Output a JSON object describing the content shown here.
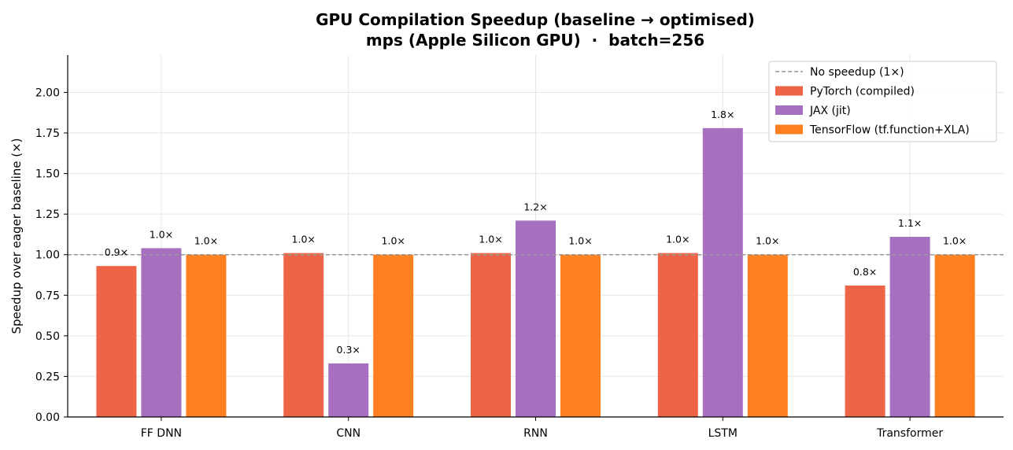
{
  "chart_data": {
    "type": "bar",
    "title": "GPU Compilation Speedup (baseline → optimised)",
    "subtitle": "mps (Apple Silicon GPU)  ·  batch=256",
    "xlabel": "",
    "ylabel": "Speedup over eager baseline (×)",
    "categories": [
      "FF DNN",
      "CNN",
      "RNN",
      "LSTM",
      "Transformer"
    ],
    "ylim": [
      0,
      2.23
    ],
    "yticks": [
      0.0,
      0.25,
      0.5,
      0.75,
      1.0,
      1.25,
      1.5,
      1.75,
      2.0
    ],
    "ytick_labels": [
      "0.00",
      "0.25",
      "0.50",
      "0.75",
      "1.00",
      "1.25",
      "1.50",
      "1.75",
      "2.00"
    ],
    "grid": true,
    "legend_position": "top-right",
    "reference_line": {
      "value": 1.0,
      "label": "No speedup (1×)",
      "color": "#999999",
      "style": "dashed"
    },
    "series": [
      {
        "name": "PyTorch (compiled)",
        "color": "#ee6447",
        "values": [
          0.93,
          1.01,
          1.01,
          1.01,
          0.81
        ],
        "labels": [
          "0.9×",
          "1.0×",
          "1.0×",
          "1.0×",
          "0.8×"
        ]
      },
      {
        "name": "JAX (jit)",
        "color": "#a66fbf",
        "values": [
          1.04,
          0.33,
          1.21,
          1.78,
          1.11
        ],
        "labels": [
          "1.0×",
          "0.3×",
          "1.2×",
          "1.8×",
          "1.1×"
        ]
      },
      {
        "name": "TensorFlow (tf.function+XLA)",
        "color": "#fd7f1f",
        "values": [
          1.0,
          1.0,
          1.0,
          1.0,
          1.0
        ],
        "labels": [
          "1.0×",
          "1.0×",
          "1.0×",
          "1.0×",
          "1.0×"
        ]
      }
    ]
  }
}
